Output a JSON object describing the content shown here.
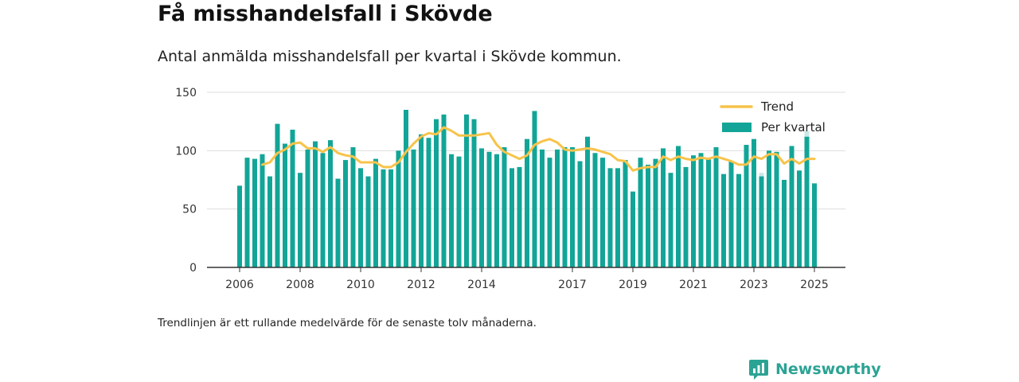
{
  "title": "Få misshandelsfall i Skövde",
  "subtitle": "Antal anmälda misshandelsfall per kvartal i Skövde kommun.",
  "footnote": "Trendlinjen är ett rullande medelvärde för de senaste tolv månaderna.",
  "brand": {
    "name": "Newsworthy",
    "icon": "newsworthy-logo-icon"
  },
  "colors": {
    "bar": "#12a597",
    "bar_preliminary": "#cbe7e8",
    "trend": "#f7c34a",
    "grid": "#dddddd",
    "axis": "#333333",
    "brand": "#2ba394"
  },
  "chart_data": {
    "type": "bar",
    "title": "Få misshandelsfall i Skövde",
    "subtitle": "Antal anmälda misshandelsfall per kvartal i Skövde kommun.",
    "xlabel": "",
    "ylabel": "",
    "ylim": [
      0,
      150
    ],
    "y_ticks": [
      0,
      50,
      100,
      150
    ],
    "x_ticks": [
      {
        "label": "2006",
        "year": 2006
      },
      {
        "label": "2008",
        "year": 2008
      },
      {
        "label": "2010",
        "year": 2010
      },
      {
        "label": "2012",
        "year": 2012
      },
      {
        "label": "2014",
        "year": 2014
      },
      {
        "label": "2017",
        "year": 2017
      },
      {
        "label": "2019",
        "year": 2019
      },
      {
        "label": "2021",
        "year": 2021
      },
      {
        "label": "2023",
        "year": 2023
      },
      {
        "label": "2025",
        "year": 2025
      }
    ],
    "grid": true,
    "legend": {
      "position": "top-right",
      "entries": [
        {
          "label": "Trend",
          "type": "line"
        },
        {
          "label": "Per kvartal",
          "type": "bar"
        }
      ]
    },
    "start": "2006 Q1",
    "end": "2025 Q1",
    "series": [
      {
        "name": "Per kvartal",
        "type": "bar",
        "values": [
          70,
          94,
          93,
          97,
          78,
          123,
          106,
          118,
          81,
          101,
          108,
          98,
          109,
          76,
          92,
          103,
          85,
          78,
          93,
          84,
          84,
          100,
          135,
          101,
          114,
          111,
          127,
          131,
          97,
          95,
          131,
          127,
          102,
          99,
          97,
          103,
          85,
          86,
          110,
          134,
          101,
          94,
          101,
          103,
          103,
          91,
          112,
          98,
          94,
          85,
          85,
          92,
          65,
          94,
          88,
          93,
          102,
          81,
          104,
          86,
          96,
          98,
          93,
          103,
          80,
          91,
          80,
          105,
          110,
          78,
          100,
          99,
          75,
          104,
          83,
          112,
          72
        ],
        "preliminary_extra": {
          "2023 Q2": 3,
          "2024 Q4": 5
        }
      },
      {
        "name": "Trend",
        "type": "line",
        "values": [
          null,
          null,
          null,
          88,
          90,
          98,
          101,
          106,
          107,
          102,
          102,
          99,
          103,
          98,
          96,
          95,
          90,
          90,
          90,
          86,
          86,
          90,
          99,
          106,
          112,
          115,
          114,
          120,
          117,
          113,
          113,
          113,
          114,
          115,
          105,
          99,
          96,
          93,
          96,
          105,
          108,
          110,
          107,
          101,
          100,
          101,
          102,
          101,
          99,
          97,
          92,
          91,
          83,
          85,
          86,
          86,
          95,
          92,
          95,
          93,
          92,
          94,
          93,
          95,
          93,
          91,
          88,
          88,
          95,
          93,
          97,
          97,
          89,
          93,
          89,
          93,
          93
        ]
      }
    ]
  }
}
